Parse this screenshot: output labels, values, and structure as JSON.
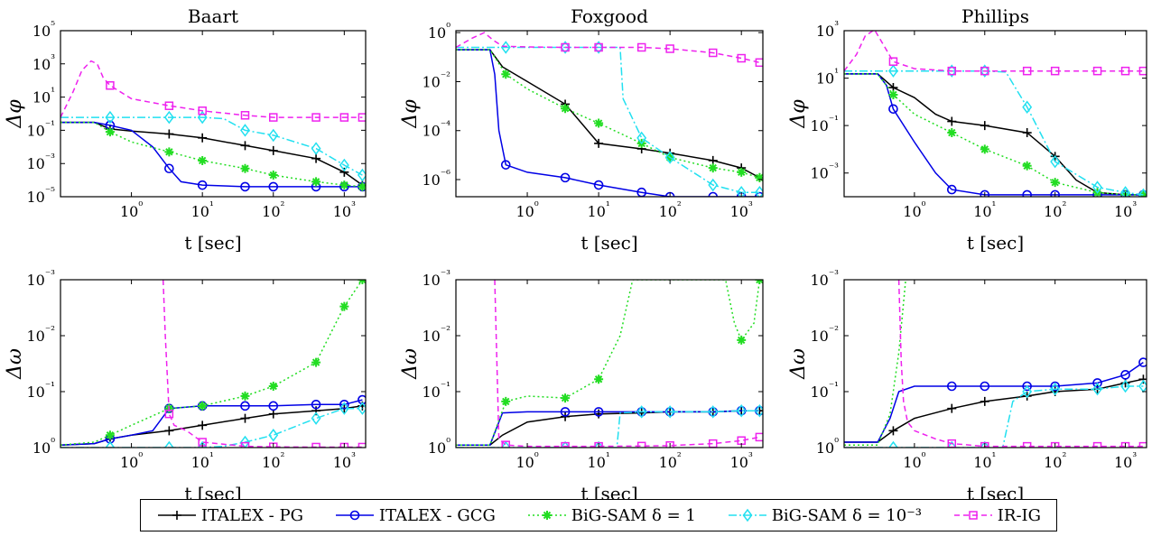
{
  "colors": {
    "pg": "#000000",
    "gcg": "#0000e6",
    "bigsam1": "#22dd22",
    "bigsam3": "#22e0f0",
    "irig": "#ee22ee"
  },
  "legend": [
    {
      "key": "pg",
      "label": "ITALEX - PG",
      "marker": "plus",
      "dash": ""
    },
    {
      "key": "gcg",
      "label": "ITALEX - GCG",
      "marker": "circle",
      "dash": ""
    },
    {
      "key": "bigsam1",
      "label": "BiG-SAM δ = 1",
      "marker": "star",
      "dash": "2,3"
    },
    {
      "key": "bigsam3",
      "label": "BiG-SAM δ = 10⁻³",
      "marker": "diamond",
      "dash": "9,3,2,3"
    },
    {
      "key": "irig",
      "label": "IR-IG",
      "marker": "square",
      "dash": "6,4"
    }
  ],
  "chart_data": [
    {
      "type": "line",
      "title": "Baart",
      "xlabel": "t [sec]",
      "ylabel": "Δφ",
      "xscale": "log",
      "yscale": "log",
      "xlim": [
        0.1,
        2000
      ],
      "ylim": [
        1e-05,
        100000.0
      ],
      "xticks": [
        1,
        10,
        100,
        1000
      ],
      "yticks": [
        1e-05,
        0.001,
        0.1,
        10,
        1000,
        100000
      ],
      "series": [
        {
          "key": "pg",
          "x": [
            0.1,
            0.3,
            0.5,
            1,
            3.4,
            10,
            40,
            100,
            400,
            1000,
            1800
          ],
          "y": [
            0.3,
            0.3,
            0.12,
            0.09,
            0.06,
            0.035,
            0.012,
            0.006,
            0.002,
            0.0003,
            5e-05
          ]
        },
        {
          "key": "gcg",
          "x": [
            0.1,
            0.3,
            0.5,
            1,
            2,
            3.4,
            5,
            10,
            40,
            100,
            400,
            1000,
            1800
          ],
          "y": [
            0.3,
            0.3,
            0.2,
            0.1,
            0.01,
            0.0005,
            8e-05,
            5e-05,
            4e-05,
            4e-05,
            4e-05,
            4e-05,
            4e-05
          ]
        },
        {
          "key": "bigsam1",
          "x": [
            0.1,
            0.3,
            0.5,
            1,
            3.4,
            10,
            40,
            100,
            400,
            1000,
            1800
          ],
          "y": [
            0.3,
            0.3,
            0.08,
            0.02,
            0.005,
            0.0015,
            0.0005,
            0.0002,
            8e-05,
            5e-05,
            4e-05
          ]
        },
        {
          "key": "bigsam3",
          "x": [
            0.1,
            0.5,
            3.4,
            10,
            20,
            40,
            100,
            400,
            1000,
            1800
          ],
          "y": [
            0.6,
            0.6,
            0.6,
            0.6,
            0.5,
            0.1,
            0.05,
            0.008,
            0.0008,
            0.0002
          ]
        },
        {
          "key": "irig",
          "x": [
            0.1,
            0.15,
            0.2,
            0.27,
            0.33,
            0.4,
            0.5,
            1,
            3.4,
            10,
            40,
            100,
            400,
            1000,
            1800
          ],
          "y": [
            0.6,
            20,
            400,
            1500,
            1000,
            150,
            50,
            8,
            3,
            1.5,
            0.8,
            0.6,
            0.6,
            0.6,
            0.6
          ]
        }
      ]
    },
    {
      "type": "line",
      "title": "Foxgood",
      "xlabel": "t [sec]",
      "ylabel": "Δφ",
      "xscale": "log",
      "yscale": "log",
      "xlim": [
        0.1,
        2000
      ],
      "ylim": [
        2e-07,
        1.2
      ],
      "xticks": [
        1,
        10,
        100,
        1000
      ],
      "yticks": [
        1e-06,
        0.0001,
        0.01,
        1
      ],
      "series": [
        {
          "key": "pg",
          "x": [
            0.1,
            0.3,
            0.45,
            1,
            3.4,
            10,
            40,
            100,
            400,
            1000,
            1800
          ],
          "y": [
            0.2,
            0.2,
            0.04,
            0.01,
            0.0012,
            3e-05,
            1.8e-05,
            1.2e-05,
            6e-06,
            3e-06,
            1.2e-06
          ]
        },
        {
          "key": "gcg",
          "x": [
            0.1,
            0.3,
            0.35,
            0.4,
            0.5,
            1,
            3.4,
            10,
            40,
            100,
            400,
            1000,
            1800
          ],
          "y": [
            0.2,
            0.2,
            0.02,
            0.0001,
            4e-06,
            2e-06,
            1.2e-06,
            6e-07,
            3e-07,
            2e-07,
            2e-07,
            2e-07,
            2e-07
          ]
        },
        {
          "key": "bigsam1",
          "x": [
            0.1,
            0.3,
            0.5,
            1,
            3.4,
            10,
            40,
            100,
            400,
            1000,
            1800
          ],
          "y": [
            0.2,
            0.2,
            0.02,
            0.005,
            0.0008,
            0.0002,
            3e-05,
            8e-06,
            3e-06,
            2e-06,
            1.2e-06
          ]
        },
        {
          "key": "bigsam3",
          "x": [
            0.1,
            0.5,
            3.4,
            10,
            20,
            22,
            40,
            100,
            400,
            1000,
            1800
          ],
          "y": [
            0.25,
            0.25,
            0.25,
            0.25,
            0.25,
            0.002,
            5e-05,
            8e-06,
            6e-07,
            3e-07,
            3e-07
          ]
        },
        {
          "key": "irig",
          "x": [
            0.1,
            0.17,
            0.25,
            0.33,
            0.45,
            1,
            3.4,
            10,
            40,
            100,
            400,
            1000,
            1800
          ],
          "y": [
            0.25,
            0.6,
            1.0,
            0.5,
            0.28,
            0.26,
            0.25,
            0.25,
            0.25,
            0.22,
            0.15,
            0.09,
            0.06
          ]
        }
      ]
    },
    {
      "type": "line",
      "title": "Phillips",
      "xlabel": "t [sec]",
      "ylabel": "Δφ",
      "xscale": "log",
      "yscale": "log",
      "xlim": [
        0.1,
        2000
      ],
      "ylim": [
        0.0001,
        1000
      ],
      "xticks": [
        1,
        10,
        100,
        1000
      ],
      "yticks": [
        0.001,
        0.1,
        10,
        1000
      ],
      "series": [
        {
          "key": "pg",
          "x": [
            0.1,
            0.3,
            0.5,
            1,
            2,
            3.4,
            10,
            40,
            100,
            200,
            400,
            1000,
            1800
          ],
          "y": [
            15,
            15,
            4,
            1.5,
            0.3,
            0.15,
            0.1,
            0.05,
            0.005,
            0.0005,
            0.00015,
            0.00012,
            0.00012
          ]
        },
        {
          "key": "gcg",
          "x": [
            0.1,
            0.3,
            0.4,
            0.5,
            1,
            2,
            3.4,
            10,
            40,
            100,
            400,
            1000,
            1800
          ],
          "y": [
            15,
            15,
            5,
            0.5,
            0.02,
            0.001,
            0.0002,
            0.00012,
            0.00012,
            0.00012,
            0.00012,
            0.00012,
            0.00012
          ]
        },
        {
          "key": "bigsam1",
          "x": [
            0.1,
            0.3,
            0.5,
            1,
            3.4,
            10,
            40,
            100,
            400,
            1000,
            1800
          ],
          "y": [
            15,
            15,
            2,
            0.3,
            0.05,
            0.01,
            0.002,
            0.0004,
            0.00015,
            0.00012,
            0.00012
          ]
        },
        {
          "key": "bigsam3",
          "x": [
            0.1,
            0.5,
            3.4,
            10,
            20,
            40,
            100,
            400,
            1000,
            1800
          ],
          "y": [
            20,
            20,
            20,
            20,
            18,
            0.6,
            0.003,
            0.00025,
            0.00015,
            0.00012
          ]
        },
        {
          "key": "irig",
          "x": [
            0.1,
            0.15,
            0.2,
            0.27,
            0.35,
            0.5,
            1,
            3.4,
            10,
            40,
            100,
            400,
            1000,
            1800
          ],
          "y": [
            20,
            100,
            600,
            1100,
            300,
            50,
            25,
            20,
            20,
            20,
            20,
            20,
            20,
            20
          ]
        }
      ]
    },
    {
      "type": "line",
      "title": "",
      "xlabel": "t [sec]",
      "ylabel": "Δω",
      "xscale": "log",
      "yscale": "log",
      "xlim": [
        0.1,
        2000
      ],
      "ylim": [
        1,
        0.001
      ],
      "xticks": [
        1,
        10,
        100,
        1000
      ],
      "yticks": [
        1,
        0.1,
        0.01,
        0.001
      ],
      "series": [
        {
          "key": "pg",
          "x": [
            0.1,
            0.3,
            0.5,
            1,
            3.4,
            10,
            40,
            100,
            400,
            1000,
            1800
          ],
          "y": [
            0.9,
            0.85,
            0.7,
            0.6,
            0.5,
            0.4,
            0.3,
            0.25,
            0.22,
            0.2,
            0.18
          ]
        },
        {
          "key": "gcg",
          "x": [
            0.1,
            0.3,
            0.5,
            1,
            2,
            3.4,
            10,
            40,
            100,
            400,
            1000,
            1800
          ],
          "y": [
            0.9,
            0.85,
            0.7,
            0.6,
            0.5,
            0.2,
            0.18,
            0.18,
            0.18,
            0.17,
            0.17,
            0.14
          ]
        },
        {
          "key": "bigsam1",
          "x": [
            0.1,
            0.3,
            0.5,
            1,
            3.4,
            10,
            40,
            100,
            400,
            1000,
            1800
          ],
          "y": [
            0.9,
            0.8,
            0.6,
            0.4,
            0.2,
            0.18,
            0.12,
            0.08,
            0.03,
            0.003,
            0.001
          ]
        },
        {
          "key": "bigsam3",
          "x": [
            0.1,
            0.5,
            3.4,
            10,
            20,
            40,
            100,
            400,
            1000,
            1800
          ],
          "y": [
            1,
            1,
            1,
            1,
            0.95,
            0.8,
            0.6,
            0.3,
            0.2,
            0.2
          ]
        },
        {
          "key": "irig",
          "x": [
            2.8,
            3,
            3.4,
            4,
            6,
            10,
            40,
            100,
            400,
            1000,
            1800
          ],
          "y": [
            0.001,
            0.01,
            0.25,
            0.4,
            0.5,
            0.8,
            0.95,
            0.97,
            0.98,
            0.98,
            0.98
          ]
        }
      ]
    },
    {
      "type": "line",
      "title": "",
      "xlabel": "t [sec]",
      "ylabel": "Δω",
      "xscale": "log",
      "yscale": "log",
      "xlim": [
        0.1,
        2000
      ],
      "ylim": [
        1,
        0.001
      ],
      "xticks": [
        1,
        10,
        100,
        1000
      ],
      "yticks": [
        1,
        0.1,
        0.01,
        0.001
      ],
      "series": [
        {
          "key": "pg",
          "x": [
            0.1,
            0.3,
            0.45,
            1,
            3.4,
            10,
            40,
            100,
            400,
            1000,
            1800
          ],
          "y": [
            0.9,
            0.9,
            0.6,
            0.35,
            0.28,
            0.25,
            0.24,
            0.23,
            0.23,
            0.22,
            0.22
          ]
        },
        {
          "key": "gcg",
          "x": [
            0.1,
            0.3,
            0.45,
            1,
            3.4,
            10,
            40,
            100,
            400,
            1000,
            1800
          ],
          "y": [
            0.9,
            0.9,
            0.24,
            0.23,
            0.23,
            0.23,
            0.23,
            0.23,
            0.23,
            0.22,
            0.22
          ]
        },
        {
          "key": "bigsam1",
          "x": [
            0.1,
            0.3,
            0.5,
            1,
            3.4,
            10,
            20,
            30,
            600,
            800,
            1000,
            1500,
            1800
          ],
          "y": [
            0.9,
            0.9,
            0.15,
            0.12,
            0.13,
            0.06,
            0.01,
            0.001,
            0.001,
            0.006,
            0.012,
            0.006,
            0.001
          ]
        },
        {
          "key": "bigsam3",
          "x": [
            0.1,
            0.5,
            3.4,
            10,
            18,
            20,
            40,
            100,
            400,
            1000,
            1800
          ],
          "y": [
            1,
            1,
            1,
            1,
            1,
            0.24,
            0.23,
            0.23,
            0.23,
            0.22,
            0.22
          ]
        },
        {
          "key": "irig",
          "x": [
            0.35,
            0.4,
            0.5,
            1,
            3.4,
            10,
            40,
            100,
            400,
            1000,
            1800
          ],
          "y": [
            0.001,
            0.7,
            0.9,
            0.95,
            0.95,
            0.95,
            0.94,
            0.92,
            0.85,
            0.75,
            0.65
          ]
        }
      ]
    },
    {
      "type": "line",
      "title": "",
      "xlabel": "t [sec]",
      "ylabel": "Δω",
      "xscale": "log",
      "yscale": "log",
      "xlim": [
        0.1,
        2000
      ],
      "ylim": [
        1,
        0.001
      ],
      "xticks": [
        1,
        10,
        100,
        1000
      ],
      "yticks": [
        1,
        0.1,
        0.01,
        0.001
      ],
      "series": [
        {
          "key": "pg",
          "x": [
            0.1,
            0.3,
            0.5,
            1,
            3.4,
            10,
            40,
            100,
            400,
            1000,
            1800
          ],
          "y": [
            0.8,
            0.8,
            0.5,
            0.3,
            0.2,
            0.15,
            0.12,
            0.1,
            0.09,
            0.07,
            0.06
          ]
        },
        {
          "key": "gcg",
          "x": [
            0.1,
            0.3,
            0.45,
            0.6,
            1,
            3.4,
            10,
            40,
            100,
            400,
            1000,
            1800
          ],
          "y": [
            0.8,
            0.8,
            0.3,
            0.1,
            0.08,
            0.08,
            0.08,
            0.08,
            0.08,
            0.07,
            0.05,
            0.03
          ]
        },
        {
          "key": "bigsam1",
          "x": [
            0.1,
            0.3,
            0.45,
            0.6,
            0.75
          ],
          "y": [
            0.9,
            0.9,
            0.25,
            0.02,
            0.001
          ]
        },
        {
          "key": "bigsam3",
          "x": [
            0.1,
            0.5,
            3.4,
            10,
            18,
            25,
            40,
            100,
            400,
            1000,
            1800
          ],
          "y": [
            1,
            1,
            1,
            1,
            1,
            0.15,
            0.1,
            0.09,
            0.09,
            0.08,
            0.08
          ]
        },
        {
          "key": "irig",
          "x": [
            0.6,
            0.65,
            0.7,
            0.8,
            1,
            2,
            3.4,
            10,
            40,
            100,
            400,
            1000,
            1800
          ],
          "y": [
            0.001,
            0.03,
            0.15,
            0.35,
            0.5,
            0.7,
            0.85,
            0.95,
            0.95,
            0.95,
            0.95,
            0.95,
            0.95
          ]
        }
      ]
    }
  ]
}
